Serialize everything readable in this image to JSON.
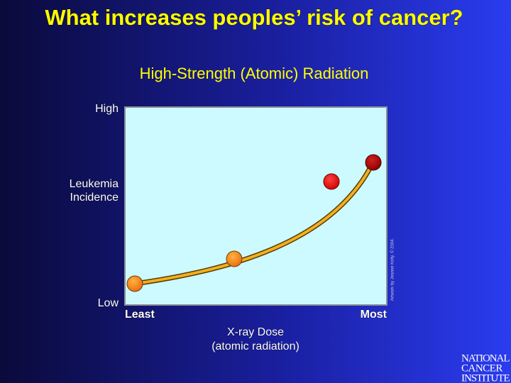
{
  "slide": {
    "title": "What increases peoples’ risk of cancer?",
    "subtitle": "High-Strength (Atomic) Radiation",
    "y_axis": {
      "top": "High",
      "label": [
        "Leukemia",
        "Incidence"
      ],
      "bottom": "Low"
    },
    "x_axis": {
      "left": "Least",
      "right": "Most",
      "label": [
        "X-ray Dose",
        "(atomic radiation)"
      ]
    },
    "credit": "Artwork by Jeanne Kelly. © 2004.",
    "logo": [
      "NATIONAL",
      "CANCER",
      "INSTITUTE"
    ]
  }
}
